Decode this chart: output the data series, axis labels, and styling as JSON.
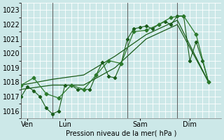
{
  "bg_color": "#cce8e8",
  "grid_color": "#ffffff",
  "line_color_dark": "#1a5c1a",
  "line_color_mid": "#2d7a2d",
  "ylabel": "Pression niveau de la mer( hPa )",
  "ylim": [
    1015.5,
    1023.5
  ],
  "yticks": [
    1016,
    1017,
    1018,
    1019,
    1020,
    1021,
    1022,
    1023
  ],
  "day_labels": [
    "Ven",
    "Lun",
    "Sam",
    "Dim"
  ],
  "day_positions": [
    0.5,
    3.5,
    9.5,
    13.5
  ],
  "vline_positions": [
    0,
    2.5,
    8.5,
    12.5
  ],
  "xlim": [
    0,
    16
  ],
  "line1_x": [
    0,
    0.5,
    1,
    1.5,
    2,
    2.5,
    3,
    3.5,
    4,
    4.5,
    5,
    5.5,
    6,
    6.5,
    7,
    7.5,
    8,
    8.5,
    9,
    9.5,
    10,
    10.5,
    11,
    11.5,
    12,
    12.5,
    13,
    13.5,
    14,
    14.5,
    15
  ],
  "line1_y": [
    1017.0,
    1017.7,
    1017.4,
    1017.0,
    1016.2,
    1015.8,
    1016.0,
    1017.8,
    1017.8,
    1017.5,
    1017.5,
    1017.5,
    1018.5,
    1019.4,
    1018.4,
    1018.3,
    1019.3,
    1021.0,
    1021.7,
    1021.8,
    1021.9,
    1021.7,
    1022.0,
    1022.2,
    1022.0,
    1022.6,
    1022.6,
    1019.5,
    1020.8,
    1019.5,
    1018.0
  ],
  "line2_x": [
    0,
    1,
    2,
    3,
    4,
    5,
    6,
    7,
    8,
    9,
    10,
    11,
    12,
    13,
    14,
    15
  ],
  "line2_y": [
    1017.8,
    1018.3,
    1017.2,
    1016.9,
    1017.8,
    1017.5,
    1018.5,
    1019.5,
    1019.3,
    1021.5,
    1021.6,
    1022.0,
    1022.5,
    1022.6,
    1021.3,
    1018.0
  ],
  "line3_x": [
    0,
    2.5,
    5,
    7.5,
    10,
    12.5,
    15
  ],
  "line3_y": [
    1017.8,
    1018.2,
    1018.5,
    1019.8,
    1021.3,
    1022.3,
    1018.0
  ],
  "line4_x": [
    0,
    2.5,
    5,
    7.5,
    10,
    12.5,
    15
  ],
  "line4_y": [
    1017.5,
    1017.8,
    1017.8,
    1019.0,
    1021.0,
    1022.0,
    1018.0
  ]
}
